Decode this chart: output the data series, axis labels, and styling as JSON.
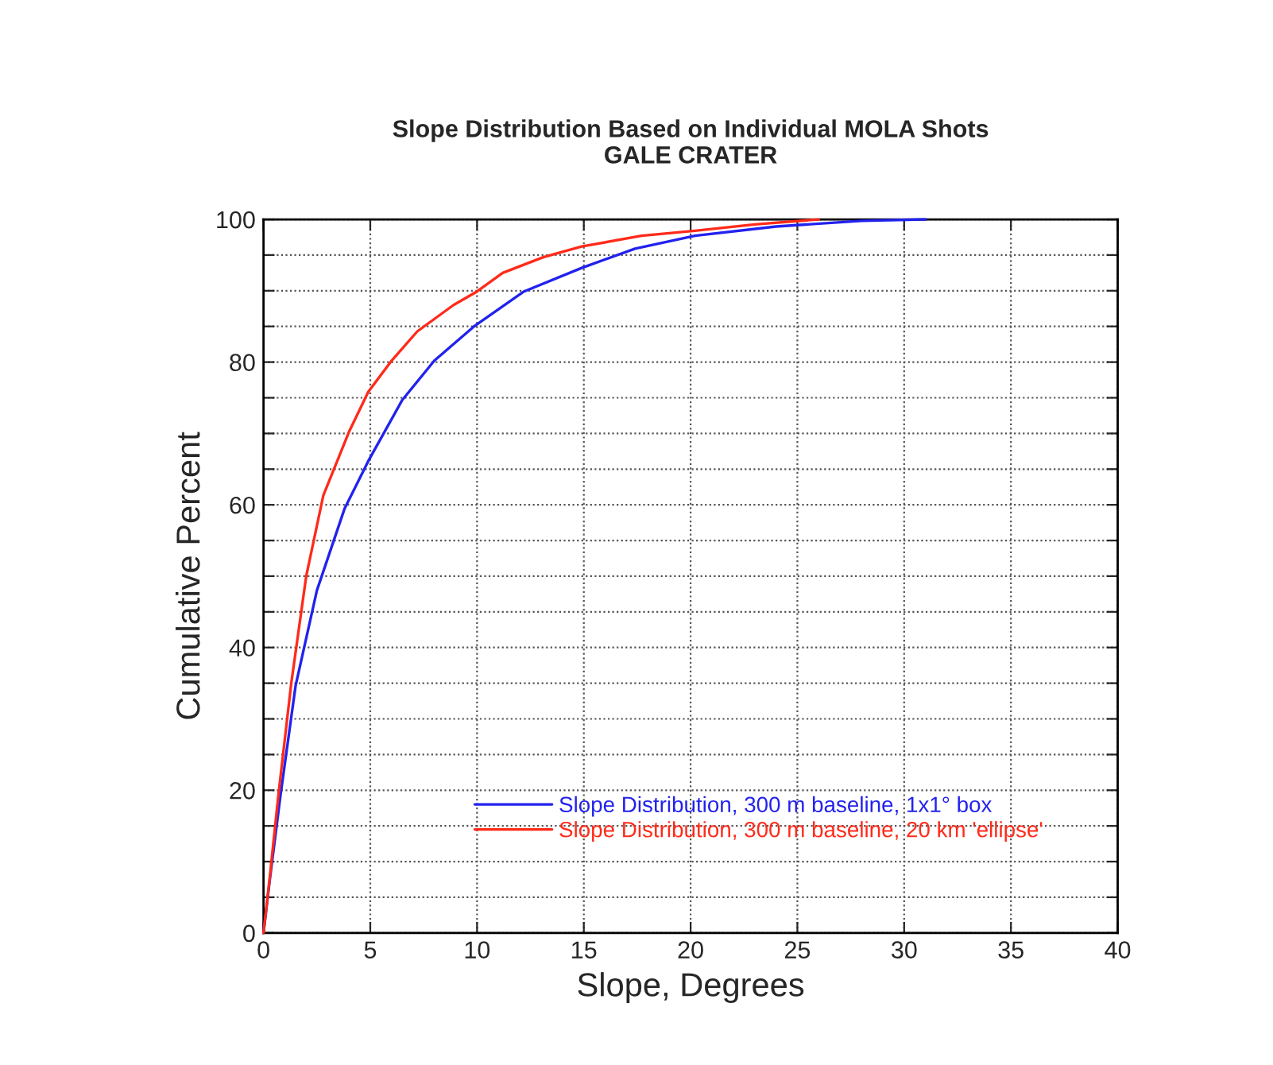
{
  "chart_data": {
    "type": "line",
    "title": "Slope Distribution Based on Individual MOLA Shots",
    "subtitle": "GALE CRATER",
    "xlabel": "Slope, Degrees",
    "ylabel": "Cumulative Percent",
    "xlim": [
      0,
      40
    ],
    "xticks": [
      0,
      5,
      10,
      15,
      20,
      25,
      30,
      35,
      40
    ],
    "ylim": [
      0,
      100
    ],
    "yticks": [
      0,
      {
        "value": 5,
        "label": null
      },
      {
        "value": 10,
        "label": null
      },
      {
        "value": 15,
        "label": null
      },
      20,
      {
        "value": 25,
        "label": null
      },
      {
        "value": 30,
        "label": null
      },
      {
        "value": 35,
        "label": null
      },
      40,
      {
        "value": 45,
        "label": null
      },
      {
        "value": 50,
        "label": null
      },
      {
        "value": 55,
        "label": null
      },
      60,
      {
        "value": 65,
        "label": null
      },
      {
        "value": 70,
        "label": null
      },
      {
        "value": 75,
        "label": null
      },
      80,
      {
        "value": 85,
        "label": null
      },
      {
        "value": 90,
        "label": null
      },
      {
        "value": 95,
        "label": null
      },
      100
    ],
    "grid": true,
    "legend": "bottom",
    "series": [
      {
        "name": "Slope Distribution, 300 m baseline, 1x1° box",
        "color": "#2222ee",
        "x": [
          0,
          0.3,
          0.8,
          1.5,
          2.5,
          3.8,
          4.9,
          6.5,
          8.0,
          9.9,
          12.2,
          14.9,
          17.4,
          20.2,
          24,
          28,
          31
        ],
        "values": [
          0,
          7.6,
          19.4,
          34.6,
          48,
          59.5,
          66.1,
          74.7,
          80.2,
          85.1,
          89.9,
          93.2,
          95.9,
          97.7,
          99.0,
          99.8,
          100
        ]
      },
      {
        "name": "Slope Distribution, 300 m baseline, 20 km 'ellipse'",
        "color": "#ff2a1a",
        "x": [
          0,
          0.3,
          0.7,
          1.3,
          2.0,
          2.8,
          4.0,
          4.9,
          6.0,
          7.2,
          8.9,
          10.0,
          11.2,
          13.1,
          14.9,
          17.7,
          20.2,
          23,
          26
        ],
        "values": [
          0,
          8,
          19.4,
          35.0,
          50.0,
          61.3,
          70.2,
          75.8,
          80.2,
          84.3,
          88.0,
          89.9,
          92.5,
          94.7,
          96.2,
          97.7,
          98.4,
          99.3,
          100
        ]
      }
    ]
  }
}
